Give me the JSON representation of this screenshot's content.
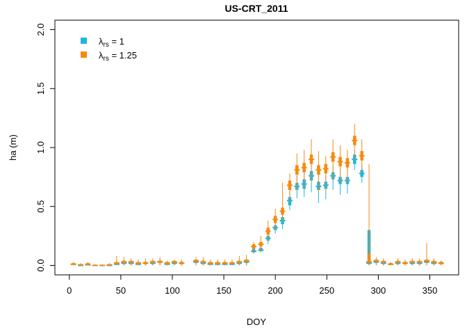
{
  "chart_data": {
    "type": "scatter",
    "title": "US-CRT_2011",
    "xlabel": "DOY",
    "ylabel": "ha (m)",
    "xlim": [
      -14,
      378
    ],
    "ylim": [
      -0.08,
      2.08
    ],
    "xticks": [
      0,
      50,
      100,
      150,
      200,
      250,
      300,
      350
    ],
    "yticks": [
      0.0,
      0.5,
      1.0,
      1.5,
      2.0
    ],
    "ytick_labels": [
      "0.0",
      "0.5",
      "1.0",
      "1.5",
      "2.0"
    ],
    "grid": false,
    "legend_position": "top-left",
    "legend": [
      {
        "symbol": "λ",
        "subscript": "rs",
        "suffix": " = 1",
        "color": "#1EB4E6"
      },
      {
        "symbol": "λ",
        "subscript": "rs",
        "suffix": " = 1.25",
        "color": "#F58A0F"
      }
    ],
    "series": [
      {
        "name": "λrs = 1",
        "color": "#1EB4E6",
        "x": [
          4,
          11,
          18,
          25,
          32,
          39,
          46,
          53,
          60,
          67,
          74,
          81,
          88,
          95,
          102,
          109,
          123,
          130,
          137,
          144,
          151,
          158,
          165,
          172,
          179,
          186,
          193,
          200,
          207,
          214,
          221,
          228,
          235,
          242,
          249,
          256,
          263,
          270,
          277,
          284,
          291,
          298,
          305,
          312,
          319,
          326,
          333,
          340,
          347,
          354,
          361
        ],
        "median": [
          0.01,
          0.0,
          0.005,
          0.0,
          0.0,
          0.0,
          0.01,
          0.02,
          0.02,
          0.01,
          0.02,
          0.02,
          0.03,
          0.01,
          0.02,
          0.02,
          0.03,
          0.02,
          0.01,
          0.01,
          0.01,
          0.01,
          0.02,
          0.03,
          0.12,
          0.13,
          0.23,
          0.32,
          0.38,
          0.55,
          0.67,
          0.69,
          0.76,
          0.67,
          0.68,
          0.76,
          0.72,
          0.72,
          0.9,
          0.78,
          0.02,
          0.03,
          0.02,
          0.01,
          0.02,
          0.02,
          0.02,
          0.02,
          0.03,
          0.02,
          0.02
        ],
        "q1": [
          0.005,
          0.0,
          0.0,
          0.0,
          0.0,
          0.0,
          0.005,
          0.01,
          0.01,
          0.005,
          0.01,
          0.01,
          0.02,
          0.005,
          0.01,
          0.01,
          0.02,
          0.01,
          0.005,
          0.005,
          0.005,
          0.005,
          0.01,
          0.02,
          0.11,
          0.12,
          0.21,
          0.3,
          0.35,
          0.51,
          0.64,
          0.65,
          0.72,
          0.64,
          0.65,
          0.73,
          0.69,
          0.69,
          0.86,
          0.75,
          0.01,
          0.02,
          0.01,
          0.005,
          0.01,
          0.01,
          0.01,
          0.01,
          0.02,
          0.01,
          0.01
        ],
        "q3": [
          0.02,
          0.01,
          0.01,
          0.005,
          0.005,
          0.005,
          0.02,
          0.03,
          0.03,
          0.02,
          0.03,
          0.03,
          0.04,
          0.02,
          0.03,
          0.03,
          0.04,
          0.03,
          0.02,
          0.02,
          0.02,
          0.02,
          0.03,
          0.04,
          0.14,
          0.15,
          0.25,
          0.34,
          0.41,
          0.58,
          0.7,
          0.73,
          0.8,
          0.71,
          0.71,
          0.79,
          0.75,
          0.75,
          0.94,
          0.81,
          0.3,
          0.04,
          0.03,
          0.02,
          0.03,
          0.03,
          0.03,
          0.03,
          0.04,
          0.03,
          0.03
        ],
        "min": [
          0.0,
          0.0,
          0.0,
          0.0,
          0.0,
          0.0,
          0.0,
          0.0,
          0.0,
          0.0,
          0.0,
          0.0,
          0.0,
          0.0,
          0.0,
          0.0,
          0.0,
          0.0,
          0.0,
          0.0,
          0.0,
          0.0,
          0.0,
          0.0,
          0.1,
          0.11,
          0.18,
          0.27,
          0.31,
          0.47,
          0.57,
          0.58,
          0.62,
          0.53,
          0.56,
          0.64,
          0.6,
          0.61,
          0.81,
          0.7,
          0.0,
          0.0,
          0.0,
          0.0,
          0.0,
          0.0,
          0.0,
          0.0,
          0.0,
          0.0,
          0.0
        ],
        "max": [
          0.02,
          0.01,
          0.02,
          0.01,
          0.01,
          0.01,
          0.04,
          0.05,
          0.04,
          0.03,
          0.04,
          0.04,
          0.06,
          0.03,
          0.04,
          0.04,
          0.05,
          0.05,
          0.03,
          0.04,
          0.03,
          0.03,
          0.05,
          0.06,
          0.15,
          0.17,
          0.28,
          0.38,
          0.45,
          0.62,
          0.76,
          0.8,
          0.86,
          0.78,
          0.76,
          0.84,
          0.81,
          0.81,
          0.98,
          0.86,
          0.3,
          0.05,
          0.04,
          0.02,
          0.04,
          0.04,
          0.04,
          0.04,
          0.05,
          0.04,
          0.04
        ]
      },
      {
        "name": "λrs = 1.25",
        "color": "#F58A0F",
        "x": [
          4,
          11,
          18,
          25,
          32,
          39,
          46,
          53,
          60,
          67,
          74,
          81,
          88,
          95,
          102,
          109,
          123,
          130,
          137,
          144,
          151,
          158,
          165,
          172,
          179,
          186,
          193,
          200,
          207,
          214,
          221,
          228,
          235,
          242,
          249,
          256,
          263,
          270,
          277,
          284,
          291,
          298,
          305,
          312,
          319,
          326,
          333,
          340,
          347,
          354,
          361
        ],
        "median": [
          0.01,
          0.005,
          0.01,
          0.0,
          0.0,
          0.005,
          0.02,
          0.03,
          0.03,
          0.02,
          0.02,
          0.03,
          0.03,
          0.02,
          0.03,
          0.02,
          0.04,
          0.03,
          0.02,
          0.02,
          0.02,
          0.02,
          0.03,
          0.04,
          0.16,
          0.18,
          0.29,
          0.39,
          0.46,
          0.68,
          0.81,
          0.83,
          0.9,
          0.81,
          0.82,
          0.92,
          0.88,
          0.87,
          1.06,
          0.93,
          0.03,
          0.04,
          0.03,
          0.01,
          0.03,
          0.02,
          0.03,
          0.03,
          0.04,
          0.03,
          0.02
        ],
        "q1": [
          0.005,
          0.0,
          0.005,
          0.0,
          0.0,
          0.0,
          0.01,
          0.02,
          0.02,
          0.01,
          0.01,
          0.02,
          0.02,
          0.01,
          0.02,
          0.01,
          0.03,
          0.02,
          0.01,
          0.01,
          0.01,
          0.01,
          0.02,
          0.03,
          0.14,
          0.16,
          0.26,
          0.36,
          0.43,
          0.64,
          0.77,
          0.79,
          0.86,
          0.77,
          0.78,
          0.88,
          0.84,
          0.83,
          1.02,
          0.89,
          0.02,
          0.03,
          0.02,
          0.005,
          0.02,
          0.01,
          0.02,
          0.02,
          0.03,
          0.02,
          0.01
        ],
        "q3": [
          0.02,
          0.01,
          0.02,
          0.005,
          0.005,
          0.01,
          0.03,
          0.04,
          0.04,
          0.03,
          0.03,
          0.04,
          0.04,
          0.03,
          0.04,
          0.03,
          0.05,
          0.04,
          0.03,
          0.03,
          0.03,
          0.03,
          0.04,
          0.05,
          0.18,
          0.2,
          0.32,
          0.42,
          0.49,
          0.72,
          0.85,
          0.87,
          0.94,
          0.85,
          0.86,
          0.96,
          0.92,
          0.91,
          1.1,
          0.97,
          0.1,
          0.05,
          0.04,
          0.02,
          0.04,
          0.03,
          0.04,
          0.04,
          0.05,
          0.04,
          0.03
        ],
        "min": [
          0.0,
          0.0,
          0.0,
          0.0,
          0.0,
          0.0,
          0.0,
          0.0,
          0.0,
          0.0,
          0.0,
          0.0,
          0.0,
          0.0,
          0.0,
          0.0,
          0.0,
          0.0,
          0.0,
          0.0,
          0.0,
          0.0,
          0.0,
          0.0,
          0.1,
          0.11,
          0.2,
          0.3,
          0.37,
          0.54,
          0.64,
          0.65,
          0.7,
          0.62,
          0.64,
          0.72,
          0.7,
          0.7,
          0.9,
          0.79,
          0.0,
          0.0,
          0.0,
          0.0,
          0.0,
          0.0,
          0.0,
          0.0,
          0.0,
          0.0,
          0.0
        ],
        "max": [
          0.03,
          0.02,
          0.03,
          0.01,
          0.01,
          0.02,
          0.08,
          0.07,
          0.06,
          0.05,
          0.06,
          0.06,
          0.07,
          0.04,
          0.05,
          0.05,
          0.07,
          0.07,
          0.05,
          0.05,
          0.05,
          0.05,
          0.08,
          0.09,
          0.2,
          0.25,
          0.38,
          0.48,
          0.7,
          0.78,
          0.95,
          0.98,
          1.07,
          0.97,
          0.93,
          1.07,
          1.02,
          0.98,
          1.2,
          1.07,
          0.86,
          0.07,
          0.06,
          0.03,
          0.06,
          0.05,
          0.06,
          0.06,
          0.19,
          0.06,
          0.04
        ]
      }
    ]
  }
}
